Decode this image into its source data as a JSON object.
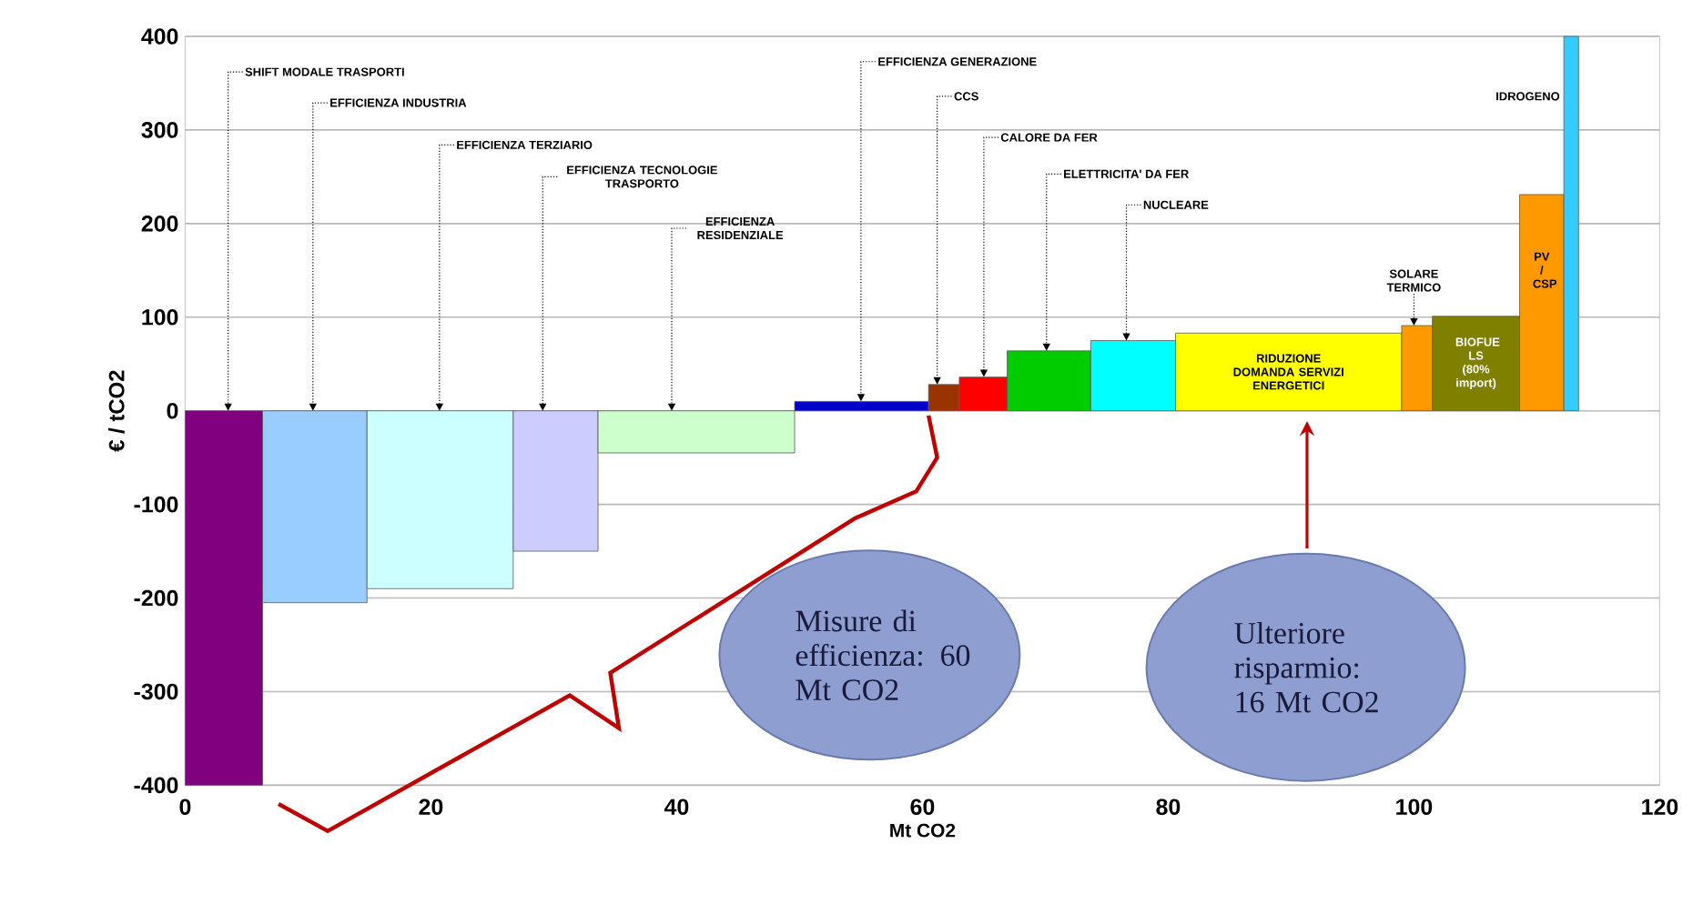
{
  "chart_data": {
    "type": "area",
    "xlabel": "Mt CO2",
    "ylabel": "€ / tCO2",
    "xlim": [
      0,
      120
    ],
    "xticks": [
      0,
      20,
      40,
      60,
      80,
      100,
      120
    ],
    "ylim": [
      -400,
      400
    ],
    "yticks": [
      -400,
      -300,
      -200,
      -100,
      0,
      100,
      200,
      300,
      400
    ],
    "grid": "y",
    "series": [
      {
        "color": "#800080",
        "x": [
          0,
          6.3
        ],
        "values": [
          -400,
          -400
        ]
      },
      {
        "color": "#99ccff",
        "x": [
          6.3,
          14.8
        ],
        "values": [
          -205,
          -205
        ]
      },
      {
        "color": "#ccffff",
        "x": [
          14.8,
          26.7
        ],
        "values": [
          -190,
          -190
        ]
      },
      {
        "color": "#ccccff",
        "x": [
          26.7,
          33.6
        ],
        "values": [
          -150,
          -150
        ]
      },
      {
        "color": "#ccffcc",
        "x": [
          33.6,
          49.6
        ],
        "values": [
          -45,
          -45
        ]
      },
      {
        "color": "#0000cc",
        "x": [
          49.6,
          60.5
        ],
        "values": [
          10,
          10
        ]
      },
      {
        "color": "#993300",
        "x": [
          60.5,
          63
        ],
        "values": [
          28,
          28
        ]
      },
      {
        "color": "#ff0000",
        "x": [
          63,
          66.9
        ],
        "values": [
          36,
          36
        ]
      },
      {
        "color": "#00cc00",
        "x": [
          66.9,
          73.7
        ],
        "values": [
          64,
          64
        ]
      },
      {
        "color": "#00ffff",
        "x": [
          73.7,
          80.6
        ],
        "values": [
          75,
          75
        ]
      },
      {
        "name": "RIDUZIONE DOMANDA SERVIZI ENERGETICI",
        "color": "#ffff00",
        "x": [
          80.6,
          99
        ],
        "values": [
          83,
          83
        ]
      },
      {
        "color": "#ff9900",
        "x": [
          99,
          101.5
        ],
        "values": [
          91,
          91
        ]
      },
      {
        "name": "BIOFUE LS (80% import)",
        "color": "#808000",
        "x": [
          101.5,
          108.6
        ],
        "values": [
          101,
          101
        ]
      },
      {
        "name": "PV / CSP",
        "color": "#ff9900",
        "x": [
          108.6,
          112.2
        ],
        "values": [
          231,
          231
        ]
      },
      {
        "name": "IDROGENO",
        "color": "#33ccff",
        "x": [
          112.2,
          113.4
        ],
        "values": [
          400,
          400
        ]
      }
    ],
    "annotations": [
      {
        "text": "SHIFT MODALE TRASPORTI",
        "x": 3.5,
        "y": 0
      },
      {
        "text": "EFFICIENZA INDUSTRIA",
        "x": 10.4,
        "y": 0
      },
      {
        "text": "EFFICIENZA TERZIARIO",
        "x": 20.7,
        "y": 0
      },
      {
        "text": "EFFICIENZA TECNOLOGIE TRASPORTO",
        "x": 29.1,
        "y": 0
      },
      {
        "text": "EFFICIENZA RESIDENZIALE",
        "x": 39.6,
        "y": 0
      },
      {
        "text": "EFFICIENZA GENERAZIONE",
        "x": 55,
        "y": 10
      },
      {
        "text": "CCS",
        "x": 61.2,
        "y": 28
      },
      {
        "text": "CALORE DA FER",
        "x": 65,
        "y": 36
      },
      {
        "text": "ELETTRICITA' DA FER",
        "x": 70.1,
        "y": 64
      },
      {
        "text": "NUCLEARE",
        "x": 76.6,
        "y": 75
      },
      {
        "text": "SOLARE TERMICO",
        "x": 100,
        "y": 91
      },
      "Misure di efficienza: 60 Mt CO2",
      "Ulteriore risparmio: 16 Mt CO2"
    ]
  }
}
